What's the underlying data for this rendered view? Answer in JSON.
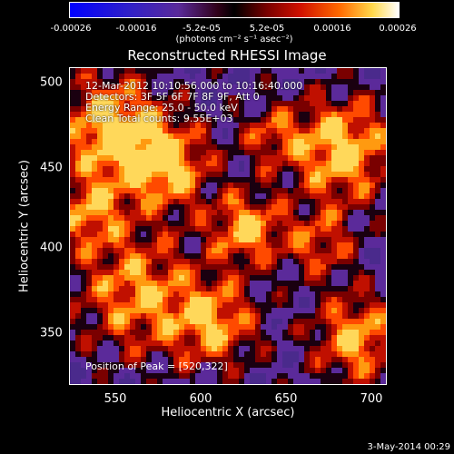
{
  "colorbar": {
    "ticks": [
      "-0.00026",
      "-0.00016",
      "-5.2e-05",
      "5.2e-05",
      "0.00016",
      "0.00026"
    ],
    "units": "(photons cm⁻² s⁻¹ asec⁻²)"
  },
  "title": "Reconstructed RHESSI Image",
  "info": {
    "time": "12-Mar-2012 10:10:56.000 to 10:16:40.000",
    "detectors": "Detectors: 3F 5F 6F 7F 8F 9F, Att 0",
    "energy": "Energy Range: 25.0 - 50.0 keV",
    "algo": "Clean     Total counts: 9.55E+03"
  },
  "peak": "Position of Peak = [520,322]",
  "axes": {
    "xlabel": "Heliocentric X (arcsec)",
    "ylabel": "Heliocentric Y (arcsec)",
    "xticks": [
      "550",
      "600",
      "650",
      "700"
    ],
    "yticks": [
      "500",
      "450",
      "400",
      "350"
    ]
  },
  "date": "3-May-2014 00:29"
}
